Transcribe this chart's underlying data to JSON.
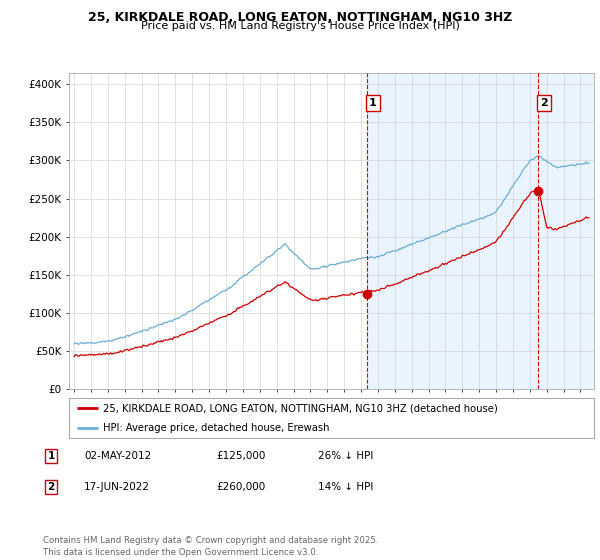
{
  "title1": "25, KIRKDALE ROAD, LONG EATON, NOTTINGHAM, NG10 3HZ",
  "title2": "Price paid vs. HM Land Registry's House Price Index (HPI)",
  "ylabel_ticks": [
    "£0",
    "£50K",
    "£100K",
    "£150K",
    "£200K",
    "£250K",
    "£300K",
    "£350K",
    "£400K"
  ],
  "ytick_values": [
    0,
    50000,
    100000,
    150000,
    200000,
    250000,
    300000,
    350000,
    400000
  ],
  "ylim": [
    0,
    415000
  ],
  "xlim_start": 1994.7,
  "xlim_end": 2025.8,
  "hpi_color": "#6baed6",
  "price_color": "#cc0000",
  "shade_color": "#ddeeff",
  "sale1_date": 2012.33,
  "sale1_price": 125000,
  "sale2_date": 2022.46,
  "sale2_price": 260000,
  "legend_label1": "25, KIRKDALE ROAD, LONG EATON, NOTTINGHAM, NG10 3HZ (detached house)",
  "legend_label2": "HPI: Average price, detached house, Erewash",
  "table_row1": [
    "1",
    "02-MAY-2012",
    "£125,000",
    "26% ↓ HPI"
  ],
  "table_row2": [
    "2",
    "17-JUN-2022",
    "£260,000",
    "14% ↓ HPI"
  ],
  "footer": "Contains HM Land Registry data © Crown copyright and database right 2025.\nThis data is licensed under the Open Government Licence v3.0.",
  "vline_color": "#cc0000",
  "fig_bg": "#ffffff",
  "plot_bg": "#ffffff"
}
